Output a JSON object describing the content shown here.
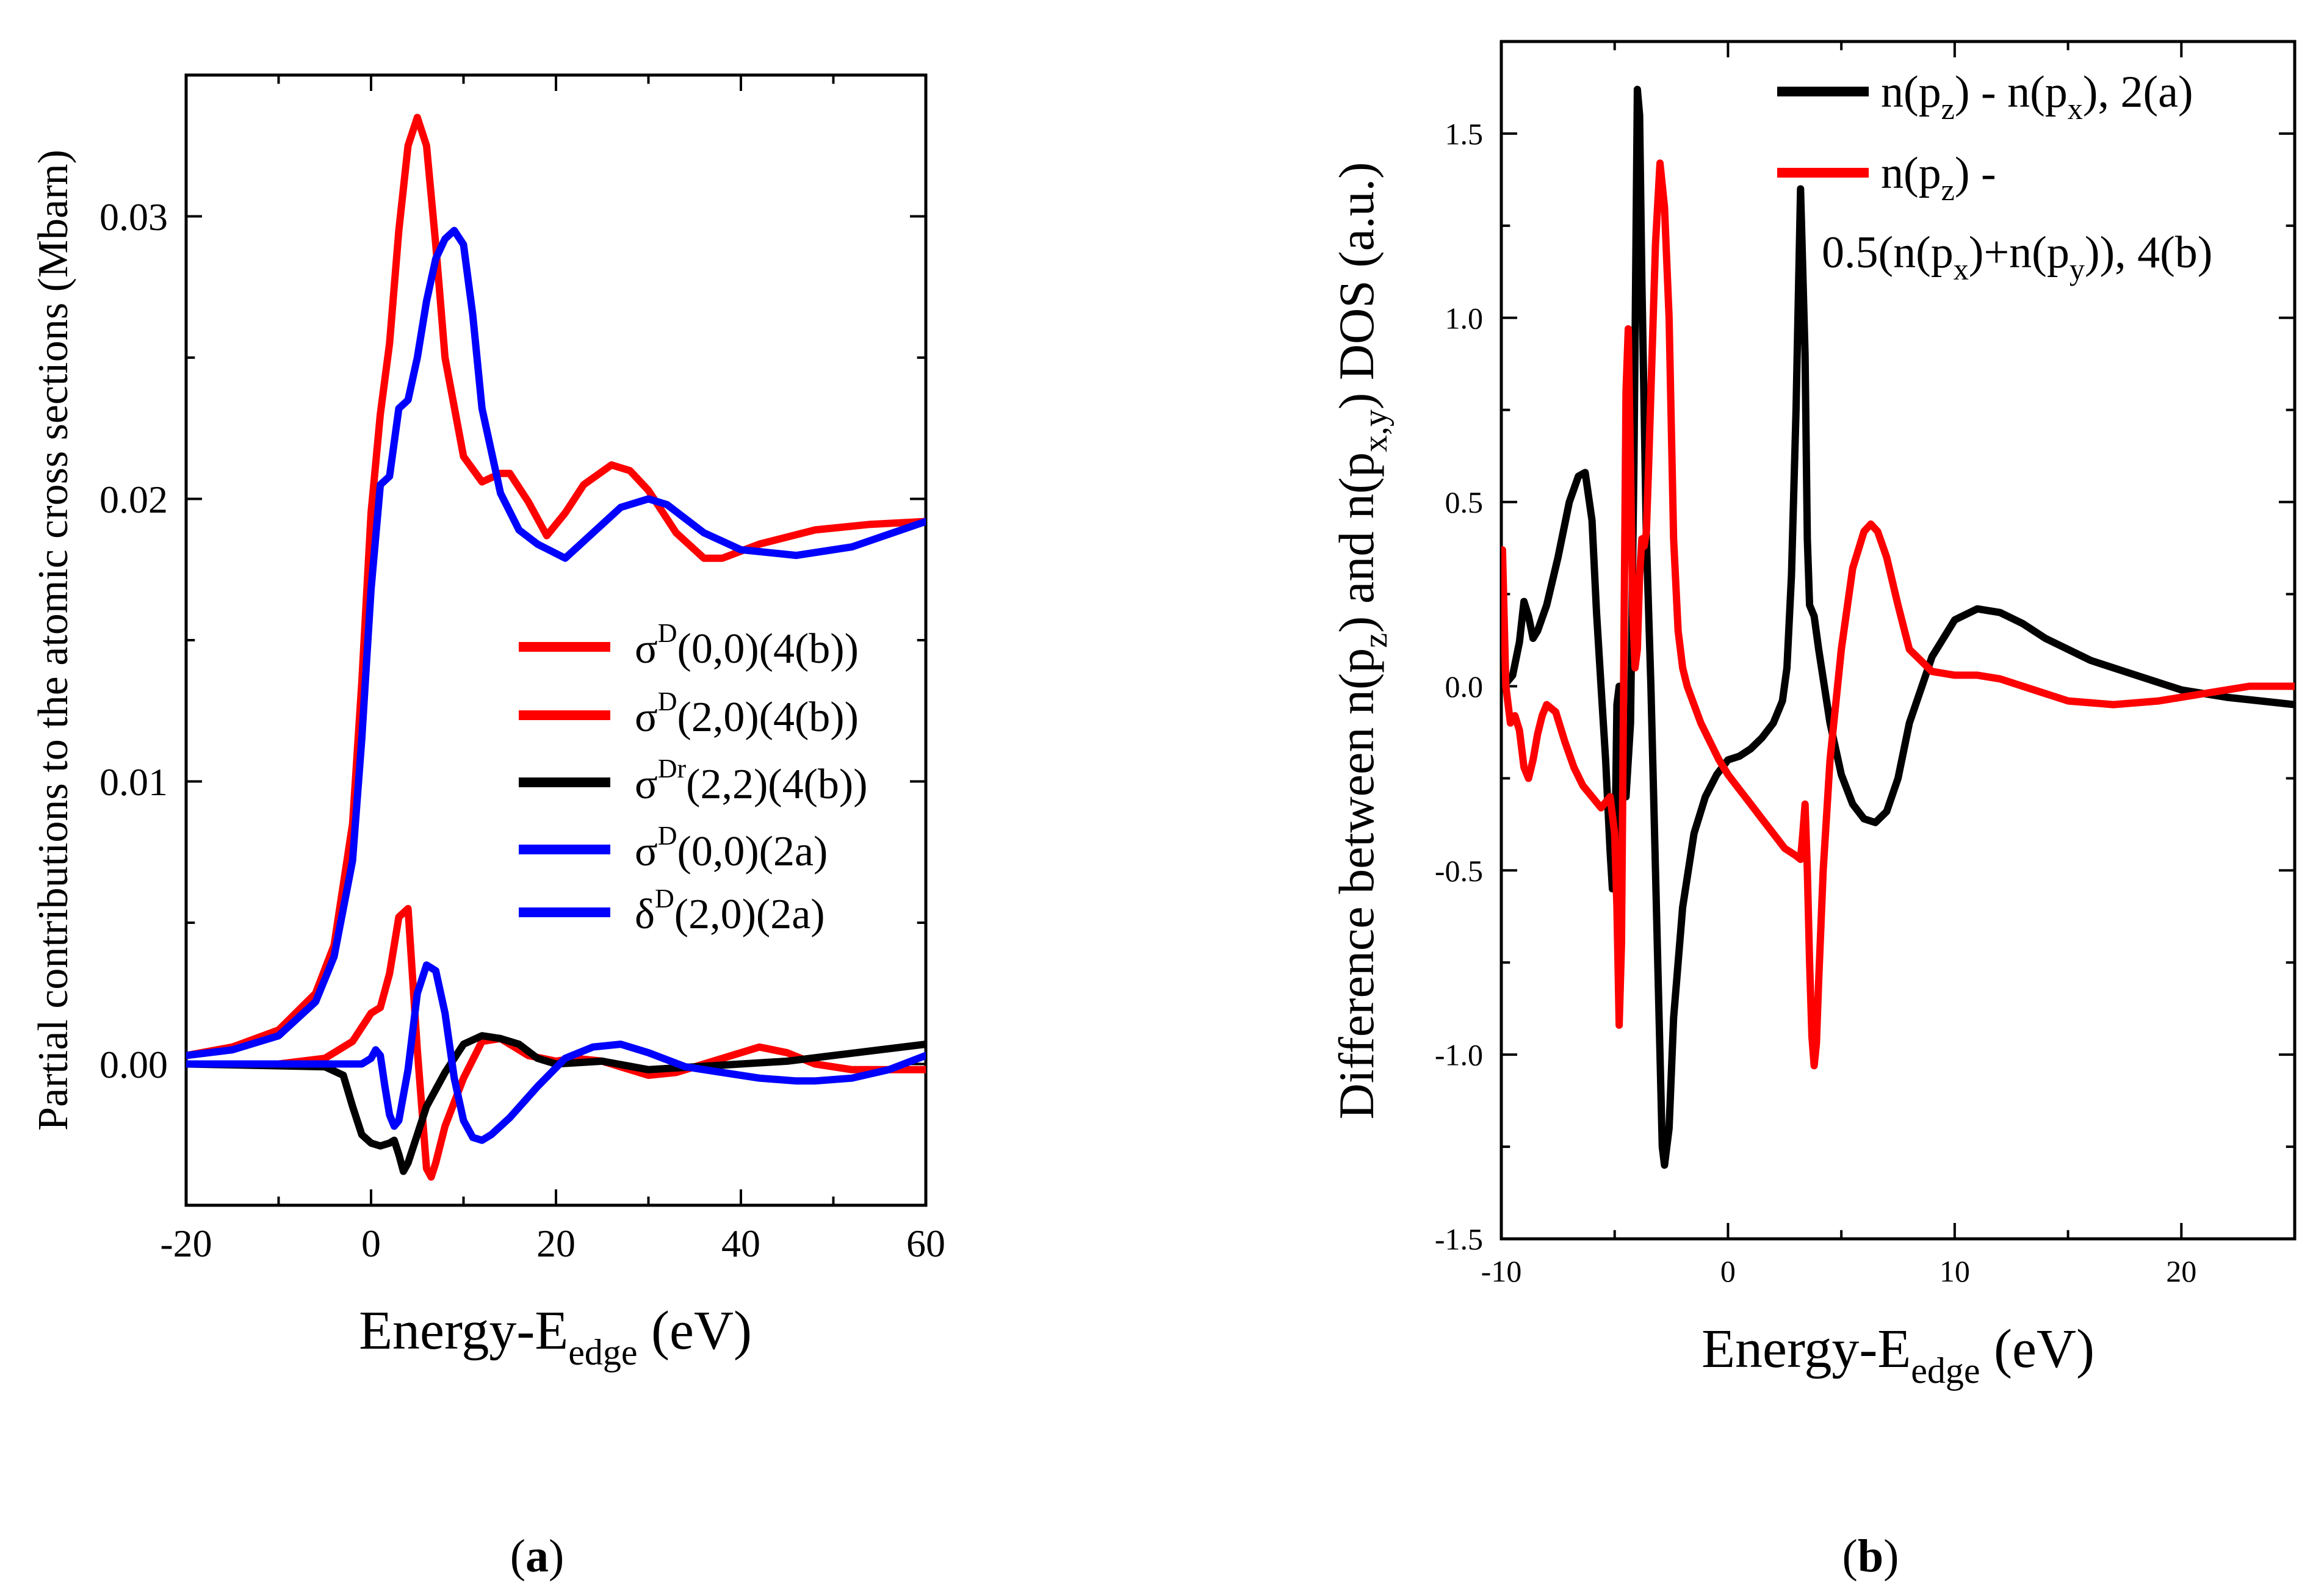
{
  "panels": {
    "a": {
      "caption_open": "(",
      "caption_letter": "a",
      "caption_close": ")"
    },
    "b": {
      "caption_open": "(",
      "caption_letter": "b",
      "caption_close": ")"
    }
  },
  "chart_data": [
    {
      "type": "line",
      "xlabel_main": "Energy-E",
      "xlabel_sub": "edge",
      "xlabel_unit": " (eV)",
      "ylabel": "Partial contributions to the atomic cross sections (Mbarn)",
      "xlim": [
        -20,
        60
      ],
      "ylim": [
        -0.005,
        0.035
      ],
      "xticks": [
        -20,
        0,
        20,
        40,
        60
      ],
      "xtick_labels": [
        "-20",
        "0",
        "20",
        "40",
        "60"
      ],
      "yticks": [
        0,
        0.01,
        0.02,
        0.03
      ],
      "ytick_labels": [
        "0.00",
        "0.01",
        "0.02",
        "0.03"
      ],
      "legend_position": "center-right",
      "series": [
        {
          "name": "σD(0,0)(4(b))",
          "legend_base": "σ",
          "legend_sup": "D",
          "legend_rest": "(0,0)(4(b))",
          "color": "#ff0000",
          "x": [
            -20,
            -15,
            -10,
            -6,
            -4,
            -2,
            -1,
            0,
            1,
            2,
            3,
            4,
            5,
            6,
            7,
            8,
            10,
            12,
            14,
            15,
            17,
            19,
            21,
            23,
            26,
            28,
            30,
            33,
            36,
            38,
            42,
            48,
            54,
            60
          ],
          "y": [
            0.0003,
            0.0006,
            0.0012,
            0.0025,
            0.0042,
            0.0085,
            0.0135,
            0.0195,
            0.023,
            0.0255,
            0.0295,
            0.0325,
            0.0335,
            0.0325,
            0.029,
            0.025,
            0.0215,
            0.0206,
            0.0209,
            0.0209,
            0.0199,
            0.0187,
            0.0195,
            0.0205,
            0.0212,
            0.021,
            0.0203,
            0.0188,
            0.0179,
            0.0179,
            0.0184,
            0.0189,
            0.0191,
            0.0192
          ]
        },
        {
          "name": "σD(2,0)(4(b))",
          "legend_base": "σ",
          "legend_sup": "D",
          "legend_rest": "(2,0)(4(b))",
          "color": "#ff0000",
          "x": [
            -20,
            -10,
            -5,
            -2,
            0,
            1,
            2,
            3,
            4,
            5,
            6,
            6.5,
            7,
            8,
            10,
            12,
            14,
            17,
            20,
            22,
            25,
            28,
            30,
            33,
            36,
            40,
            42,
            45,
            48,
            52,
            60
          ],
          "y": [
            0,
            0,
            0.0002,
            0.0008,
            0.0018,
            0.002,
            0.0032,
            0.0052,
            0.0055,
            0.0005,
            -0.0037,
            -0.004,
            -0.0035,
            -0.0022,
            -0.0005,
            0.0008,
            0.0009,
            0.0003,
            0.0001,
            0.0002,
            0.0001,
            -0.0002,
            -0.0004,
            -0.0003,
            0,
            0.0004,
            0.0006,
            0.0004,
            0,
            -0.0002,
            -0.0002
          ]
        },
        {
          "name": "σDr(2,2)(4(b))",
          "legend_base": "σ",
          "legend_sup": "Dr",
          "legend_rest": "(2,2)(4(b))",
          "color": "#000000",
          "x": [
            -20,
            -5,
            -3,
            -2,
            -1,
            0,
            1,
            2,
            2.5,
            3,
            3.5,
            4,
            5,
            6,
            8,
            10,
            12,
            14,
            16,
            18,
            20,
            25,
            30,
            35,
            40,
            45,
            50,
            55,
            60
          ],
          "y": [
            0,
            -0.0001,
            -0.0004,
            -0.0015,
            -0.0025,
            -0.0028,
            -0.0029,
            -0.0028,
            -0.0027,
            -0.0032,
            -0.0038,
            -0.0035,
            -0.0025,
            -0.0015,
            -0.0003,
            0.0007,
            0.001,
            0.0009,
            0.0007,
            0.0002,
            0,
            0.0001,
            -0.0002,
            -0.0001,
            0,
            0.0001,
            0.0003,
            0.0005,
            0.0007
          ]
        },
        {
          "name": "σD(0,0)(2a)",
          "legend_base": "σ",
          "legend_sup": "D",
          "legend_rest": "(0,0)(2a)",
          "color": "#0000ff",
          "x": [
            -20,
            -15,
            -10,
            -6,
            -4,
            -2,
            -1,
            0,
            1,
            2,
            3,
            4,
            5,
            6,
            7,
            8,
            9,
            10,
            11,
            12,
            14,
            16,
            18,
            21,
            24,
            27,
            30,
            32,
            36,
            40,
            46,
            52,
            60
          ],
          "y": [
            0.0003,
            0.0005,
            0.001,
            0.0022,
            0.0038,
            0.0072,
            0.0115,
            0.0168,
            0.0205,
            0.0208,
            0.0232,
            0.0235,
            0.025,
            0.027,
            0.0285,
            0.0292,
            0.0295,
            0.029,
            0.0265,
            0.0232,
            0.0202,
            0.0189,
            0.0184,
            0.0179,
            0.0188,
            0.0197,
            0.02,
            0.0198,
            0.0188,
            0.0182,
            0.018,
            0.0183,
            0.0192
          ]
        },
        {
          "name": "δD(2,0)(2a)",
          "legend_base": "δ",
          "legend_sup": "D",
          "legend_rest": "(2,0)(2a)",
          "color": "#0000ff",
          "x": [
            -20,
            -10,
            -5,
            -2,
            -1,
            0,
            0.5,
            1,
            1.5,
            2,
            2.5,
            3,
            4,
            5,
            6,
            7,
            8,
            9,
            10,
            11,
            12,
            13,
            15,
            18,
            21,
            24,
            27,
            30,
            34,
            38,
            42,
            46,
            48,
            52,
            56,
            60
          ],
          "y": [
            0,
            0,
            0,
            0,
            0,
            0.0002,
            0.0005,
            0.0003,
            -0.0008,
            -0.0018,
            -0.0022,
            -0.002,
            -0.0002,
            0.0025,
            0.0035,
            0.0033,
            0.0018,
            -0.0005,
            -0.002,
            -0.0026,
            -0.0027,
            -0.0025,
            -0.0019,
            -0.0008,
            0.0002,
            0.0006,
            0.0007,
            0.0004,
            -0.0001,
            -0.0003,
            -0.0005,
            -0.0006,
            -0.0006,
            -0.0005,
            -0.0002,
            0.0003
          ]
        }
      ]
    },
    {
      "type": "line",
      "xlabel_main": "Energy-E",
      "xlabel_sub": "edge",
      "xlabel_unit": " (eV)",
      "ylabel_parts": [
        "Difference between n(p",
        "z",
        ") and n(p",
        "x,y",
        ") DOS (a.u.)"
      ],
      "xlim": [
        -10,
        25
      ],
      "ylim": [
        -1.5,
        1.75
      ],
      "xticks": [
        -10,
        0,
        10,
        20
      ],
      "xtick_labels": [
        "-10",
        "0",
        "10",
        "20"
      ],
      "yticks": [
        -1.5,
        -1.0,
        -0.5,
        0.0,
        0.5,
        1.0,
        1.5
      ],
      "ytick_labels": [
        "-1.5",
        "-1.0",
        "-0.5",
        "0.0",
        "0.5",
        "1.0",
        "1.5"
      ],
      "legend_position": "top-right",
      "series": [
        {
          "name": "n(pz) - n(px), 2(a)",
          "color": "#000000",
          "legend_line1": [
            "n(p",
            "z",
            ") - n(p",
            "x",
            "), 2(a)"
          ],
          "x": [
            -9.9,
            -9.5,
            -9.2,
            -9.0,
            -8.8,
            -8.6,
            -8.4,
            -8.0,
            -7.5,
            -7.0,
            -6.6,
            -6.3,
            -6.0,
            -5.8,
            -5.6,
            -5.4,
            -5.2,
            -5.1,
            -5.0,
            -4.9,
            -4.8,
            -4.7,
            -4.5,
            -4.3,
            -4.15,
            -4.0,
            -3.9,
            -3.8,
            -3.6,
            -3.4,
            -3.2,
            -3.0,
            -2.9,
            -2.8,
            -2.6,
            -2.4,
            -2.0,
            -1.5,
            -1.0,
            -0.5,
            0.0,
            0.5,
            1.0,
            1.5,
            2.0,
            2.4,
            2.6,
            2.8,
            3.0,
            3.2,
            3.4,
            3.5,
            3.6,
            3.8,
            4.0,
            4.5,
            5.0,
            5.5,
            6.0,
            6.5,
            7.0,
            7.5,
            8.0,
            9.0,
            10.0,
            11.0,
            12.0,
            13.0,
            14.0,
            16.0,
            18.0,
            20.0,
            22.0,
            25.0
          ],
          "y": [
            0.0,
            0.03,
            0.12,
            0.23,
            0.19,
            0.13,
            0.15,
            0.22,
            0.35,
            0.5,
            0.57,
            0.58,
            0.45,
            0.2,
            0.0,
            -0.2,
            -0.45,
            -0.55,
            -0.5,
            -0.05,
            0.0,
            -0.1,
            -0.3,
            -0.1,
            0.6,
            1.62,
            1.55,
            1.1,
            0.4,
            0.0,
            -0.5,
            -1.0,
            -1.25,
            -1.3,
            -1.2,
            -0.9,
            -0.6,
            -0.4,
            -0.3,
            -0.24,
            -0.2,
            -0.19,
            -0.17,
            -0.14,
            -0.1,
            -0.04,
            0.05,
            0.3,
            0.75,
            1.35,
            0.9,
            0.4,
            0.22,
            0.19,
            0.1,
            -0.1,
            -0.24,
            -0.32,
            -0.36,
            -0.37,
            -0.34,
            -0.25,
            -0.1,
            0.08,
            0.18,
            0.21,
            0.2,
            0.17,
            0.13,
            0.07,
            0.03,
            -0.01,
            -0.03,
            -0.05
          ]
        },
        {
          "name": "n(pz) - 0.5(n(px)+n(py)), 4(b)",
          "color": "#ff0000",
          "legend_line1": [
            "n(p",
            "z",
            ") -"
          ],
          "legend_line2": [
            "0.5(n(p",
            "x",
            ")+n(p",
            "y",
            ")), 4(b)"
          ],
          "x": [
            -9.95,
            -9.8,
            -9.6,
            -9.4,
            -9.2,
            -9.0,
            -8.8,
            -8.6,
            -8.4,
            -8.2,
            -8.0,
            -7.6,
            -7.2,
            -6.8,
            -6.4,
            -6.0,
            -5.6,
            -5.2,
            -5.0,
            -4.9,
            -4.8,
            -4.7,
            -4.6,
            -4.5,
            -4.4,
            -4.3,
            -4.2,
            -4.1,
            -4.0,
            -3.9,
            -3.8,
            -3.7,
            -3.6,
            -3.5,
            -3.4,
            -3.2,
            -3.0,
            -2.8,
            -2.6,
            -2.5,
            -2.4,
            -2.2,
            -2.0,
            -1.8,
            -1.5,
            -1.2,
            -0.8,
            -0.4,
            0.0,
            0.5,
            1.0,
            1.5,
            2.0,
            2.5,
            3.0,
            3.2,
            3.3,
            3.4,
            3.5,
            3.6,
            3.7,
            3.8,
            3.9,
            4.0,
            4.2,
            4.5,
            5.0,
            5.5,
            6.0,
            6.3,
            6.6,
            7.0,
            7.5,
            8.0,
            9.0,
            10.0,
            11.0,
            12.0,
            13.0,
            15.0,
            17.0,
            19.0,
            21.0,
            23.0,
            25.0
          ],
          "y": [
            0.37,
            0.0,
            -0.1,
            -0.08,
            -0.12,
            -0.22,
            -0.25,
            -0.2,
            -0.13,
            -0.08,
            -0.05,
            -0.07,
            -0.15,
            -0.22,
            -0.27,
            -0.3,
            -0.33,
            -0.3,
            -0.4,
            -0.6,
            -0.92,
            -0.7,
            0.05,
            0.8,
            0.97,
            0.6,
            0.2,
            0.05,
            0.1,
            0.3,
            0.4,
            0.38,
            0.42,
            0.6,
            0.8,
            1.2,
            1.42,
            1.3,
            1.0,
            0.7,
            0.4,
            0.15,
            0.05,
            0.0,
            -0.05,
            -0.1,
            -0.15,
            -0.2,
            -0.24,
            -0.28,
            -0.32,
            -0.36,
            -0.4,
            -0.44,
            -0.46,
            -0.47,
            -0.4,
            -0.32,
            -0.5,
            -0.75,
            -0.95,
            -1.03,
            -0.97,
            -0.8,
            -0.5,
            -0.2,
            0.1,
            0.32,
            0.42,
            0.44,
            0.42,
            0.35,
            0.22,
            0.1,
            0.04,
            0.03,
            0.03,
            0.02,
            0.0,
            -0.04,
            -0.05,
            -0.04,
            -0.02,
            0.0,
            0.0
          ]
        }
      ]
    }
  ]
}
